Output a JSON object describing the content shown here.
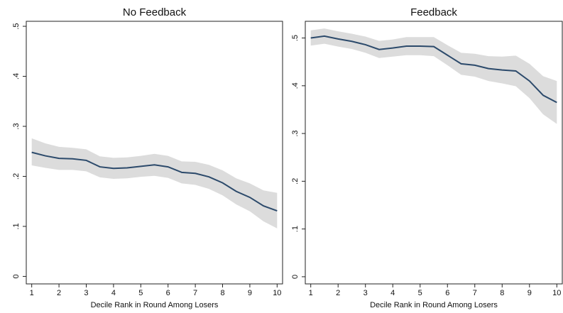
{
  "chart_data": [
    {
      "type": "line",
      "title": "No Feedback",
      "x_label": "Decile Rank in Round Among Losers",
      "x": [
        1,
        1.5,
        2,
        2.5,
        3,
        3.5,
        4,
        4.5,
        5,
        5.5,
        6,
        6.5,
        7,
        7.5,
        8,
        8.5,
        9,
        9.5,
        10
      ],
      "values": [
        0.248,
        0.241,
        0.236,
        0.235,
        0.232,
        0.219,
        0.216,
        0.217,
        0.22,
        0.223,
        0.219,
        0.208,
        0.206,
        0.199,
        0.187,
        0.17,
        0.158,
        0.141,
        0.131
      ],
      "lower": [
        0.222,
        0.217,
        0.213,
        0.213,
        0.21,
        0.198,
        0.195,
        0.196,
        0.199,
        0.201,
        0.197,
        0.186,
        0.183,
        0.175,
        0.162,
        0.144,
        0.13,
        0.11,
        0.096
      ],
      "upper": [
        0.276,
        0.266,
        0.259,
        0.257,
        0.254,
        0.24,
        0.237,
        0.238,
        0.241,
        0.245,
        0.241,
        0.23,
        0.229,
        0.223,
        0.212,
        0.196,
        0.186,
        0.172,
        0.167
      ],
      "color": "#2c4a6b",
      "band_color": "#dcdcdc",
      "xlim": [
        0.8,
        10.2
      ],
      "xticks": [
        1,
        2,
        3,
        4,
        5,
        6,
        7,
        8,
        9,
        10
      ],
      "ylim": [
        -0.015,
        0.51
      ],
      "yticks": [
        0,
        {
          "value": 0.1,
          "label": ".1"
        },
        {
          "value": 0.2,
          "label": ".2"
        },
        {
          "value": 0.3,
          "label": ".3"
        },
        {
          "value": 0.4,
          "label": ".4"
        },
        {
          "value": 0.5,
          "label": ".5"
        }
      ]
    },
    {
      "type": "line",
      "title": "Feedback",
      "x_label": "Decile Rank in Round Among Losers",
      "x": [
        1,
        1.5,
        2,
        2.5,
        3,
        3.5,
        4,
        4.5,
        5,
        5.5,
        6,
        6.5,
        7,
        7.5,
        8,
        8.5,
        9,
        9.5,
        10
      ],
      "values": [
        0.5,
        0.504,
        0.498,
        0.493,
        0.486,
        0.476,
        0.479,
        0.483,
        0.483,
        0.482,
        0.464,
        0.446,
        0.443,
        0.436,
        0.433,
        0.431,
        0.41,
        0.38,
        0.365
      ],
      "lower": [
        0.484,
        0.488,
        0.482,
        0.477,
        0.469,
        0.458,
        0.461,
        0.464,
        0.464,
        0.462,
        0.443,
        0.423,
        0.419,
        0.41,
        0.405,
        0.399,
        0.374,
        0.34,
        0.32
      ],
      "upper": [
        0.516,
        0.52,
        0.514,
        0.509,
        0.503,
        0.494,
        0.497,
        0.502,
        0.502,
        0.502,
        0.485,
        0.469,
        0.467,
        0.462,
        0.461,
        0.463,
        0.446,
        0.42,
        0.41
      ],
      "color": "#2c4a6b",
      "band_color": "#dcdcdc",
      "xlim": [
        0.8,
        10.2
      ],
      "xticks": [
        1,
        2,
        3,
        4,
        5,
        6,
        7,
        8,
        9,
        10
      ],
      "ylim": [
        -0.015,
        0.535
      ],
      "yticks": [
        0,
        {
          "value": 0.1,
          "label": ".1"
        },
        {
          "value": 0.2,
          "label": ".2"
        },
        {
          "value": 0.3,
          "label": ".3"
        },
        {
          "value": 0.4,
          "label": ".4"
        },
        {
          "value": 0.5,
          "label": ".5"
        }
      ]
    }
  ]
}
